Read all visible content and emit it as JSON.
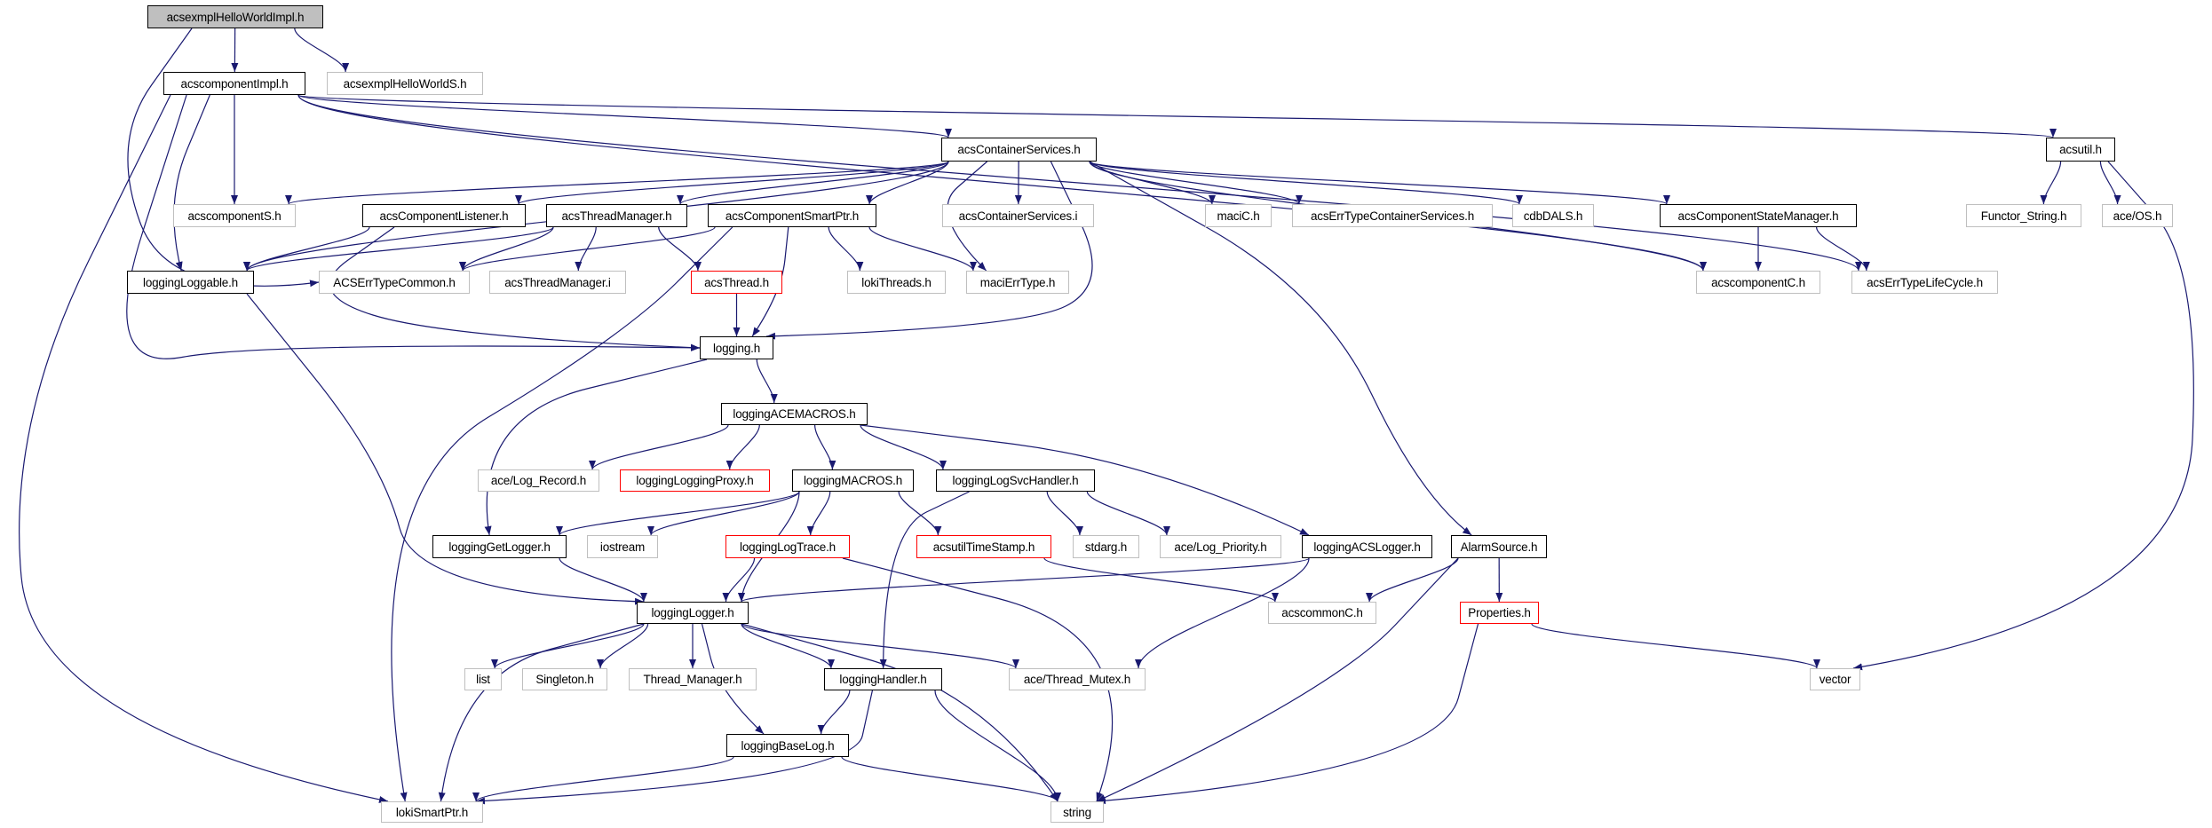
{
  "colors": {
    "edge": "#191970",
    "root_fill": "#bfbfbf",
    "documented_border": "#000000",
    "external_border": "#bfbfbf",
    "truncated_border": "#ff0000"
  },
  "nodes": [
    {
      "id": "root",
      "label": "acsexmplHelloWorldImpl.h",
      "style": "root"
    },
    {
      "id": "impl",
      "label": "acscomponentImpl.h",
      "style": "normal"
    },
    {
      "id": "helloS",
      "label": "acsexmplHelloWorldS.h",
      "style": "external"
    },
    {
      "id": "cs",
      "label": "acsContainerServices.h",
      "style": "normal"
    },
    {
      "id": "acsutil",
      "label": "acsutil.h",
      "style": "normal"
    },
    {
      "id": "compS",
      "label": "acscomponentS.h",
      "style": "external"
    },
    {
      "id": "listener",
      "label": "acsComponentListener.h",
      "style": "normal"
    },
    {
      "id": "threadMgr",
      "label": "acsThreadManager.h",
      "style": "normal"
    },
    {
      "id": "smartPtr",
      "label": "acsComponentSmartPtr.h",
      "style": "normal"
    },
    {
      "id": "csi",
      "label": "acsContainerServices.i",
      "style": "external"
    },
    {
      "id": "maciC",
      "label": "maciC.h",
      "style": "external"
    },
    {
      "id": "errCS",
      "label": "acsErrTypeContainerServices.h",
      "style": "external"
    },
    {
      "id": "cdb",
      "label": "cdbDALS.h",
      "style": "external"
    },
    {
      "id": "stateMgr",
      "label": "acsComponentStateManager.h",
      "style": "normal"
    },
    {
      "id": "functor",
      "label": "Functor_String.h",
      "style": "external"
    },
    {
      "id": "aceOS",
      "label": "ace/OS.h",
      "style": "external"
    },
    {
      "id": "loggable",
      "label": "loggingLoggable.h",
      "style": "normal"
    },
    {
      "id": "errCommon",
      "label": "ACSErrTypeCommon.h",
      "style": "external"
    },
    {
      "id": "tmi",
      "label": "acsThreadManager.i",
      "style": "external"
    },
    {
      "id": "thread",
      "label": "acsThread.h",
      "style": "truncated"
    },
    {
      "id": "lokiThreads",
      "label": "lokiThreads.h",
      "style": "external"
    },
    {
      "id": "maciErr",
      "label": "maciErrType.h",
      "style": "external"
    },
    {
      "id": "compC",
      "label": "acscomponentC.h",
      "style": "external"
    },
    {
      "id": "lifeCycle",
      "label": "acsErrTypeLifeCycle.h",
      "style": "external"
    },
    {
      "id": "logging",
      "label": "logging.h",
      "style": "normal"
    },
    {
      "id": "aceMacros",
      "label": "loggingACEMACROS.h",
      "style": "normal"
    },
    {
      "id": "logRecord",
      "label": "ace/Log_Record.h",
      "style": "external"
    },
    {
      "id": "proxy",
      "label": "loggingLoggingProxy.h",
      "style": "truncated"
    },
    {
      "id": "macros",
      "label": "loggingMACROS.h",
      "style": "normal"
    },
    {
      "id": "svc",
      "label": "loggingLogSvcHandler.h",
      "style": "normal"
    },
    {
      "id": "getLogger",
      "label": "loggingGetLogger.h",
      "style": "normal"
    },
    {
      "id": "iostream",
      "label": "iostream",
      "style": "external"
    },
    {
      "id": "logTrace",
      "label": "loggingLogTrace.h",
      "style": "truncated"
    },
    {
      "id": "timeStamp",
      "label": "acsutilTimeStamp.h",
      "style": "truncated"
    },
    {
      "id": "stdarg",
      "label": "stdarg.h",
      "style": "external"
    },
    {
      "id": "logPriority",
      "label": "ace/Log_Priority.h",
      "style": "external"
    },
    {
      "id": "acsLogger",
      "label": "loggingACSLogger.h",
      "style": "normal"
    },
    {
      "id": "alarm",
      "label": "AlarmSource.h",
      "style": "normal"
    },
    {
      "id": "logger",
      "label": "loggingLogger.h",
      "style": "normal"
    },
    {
      "id": "commonC",
      "label": "acscommonC.h",
      "style": "external"
    },
    {
      "id": "props",
      "label": "Properties.h",
      "style": "truncated"
    },
    {
      "id": "list",
      "label": "list",
      "style": "external"
    },
    {
      "id": "singleton",
      "label": "Singleton.h",
      "style": "external"
    },
    {
      "id": "threadManager",
      "label": "Thread_Manager.h",
      "style": "external"
    },
    {
      "id": "handler",
      "label": "loggingHandler.h",
      "style": "normal"
    },
    {
      "id": "mutex",
      "label": "ace/Thread_Mutex.h",
      "style": "external"
    },
    {
      "id": "vector",
      "label": "vector",
      "style": "external"
    },
    {
      "id": "baseLog",
      "label": "loggingBaseLog.h",
      "style": "normal"
    },
    {
      "id": "lokiSP",
      "label": "lokiSmartPtr.h",
      "style": "external"
    },
    {
      "id": "string",
      "label": "string",
      "style": "external"
    }
  ],
  "edges": [
    [
      "root",
      "impl"
    ],
    [
      "root",
      "helloS"
    ],
    [
      "root",
      "errCommon"
    ],
    [
      "impl",
      "compS"
    ],
    [
      "impl",
      "loggable"
    ],
    [
      "impl",
      "logging"
    ],
    [
      "impl",
      "lokiSP"
    ],
    [
      "impl",
      "cs"
    ],
    [
      "impl",
      "acsutil"
    ],
    [
      "impl",
      "compC"
    ],
    [
      "impl",
      "lifeCycle"
    ],
    [
      "cs",
      "compS"
    ],
    [
      "cs",
      "loggable"
    ],
    [
      "cs",
      "listener"
    ],
    [
      "cs",
      "threadMgr"
    ],
    [
      "cs",
      "smartPtr"
    ],
    [
      "cs",
      "csi"
    ],
    [
      "cs",
      "maciErr"
    ],
    [
      "cs",
      "logging"
    ],
    [
      "cs",
      "maciC"
    ],
    [
      "cs",
      "errCS"
    ],
    [
      "cs",
      "cdb"
    ],
    [
      "cs",
      "stateMgr"
    ],
    [
      "cs",
      "compC"
    ],
    [
      "cs",
      "alarm"
    ],
    [
      "listener",
      "loggable"
    ],
    [
      "listener",
      "logging"
    ],
    [
      "threadMgr",
      "loggable"
    ],
    [
      "threadMgr",
      "errCommon"
    ],
    [
      "threadMgr",
      "tmi"
    ],
    [
      "threadMgr",
      "thread"
    ],
    [
      "smartPtr",
      "errCommon"
    ],
    [
      "smartPtr",
      "lokiSP"
    ],
    [
      "smartPtr",
      "logging"
    ],
    [
      "smartPtr",
      "lokiThreads"
    ],
    [
      "smartPtr",
      "maciErr"
    ],
    [
      "thread",
      "logging"
    ],
    [
      "stateMgr",
      "compC"
    ],
    [
      "stateMgr",
      "lifeCycle"
    ],
    [
      "acsutil",
      "functor"
    ],
    [
      "acsutil",
      "aceOS"
    ],
    [
      "acsutil",
      "vector"
    ],
    [
      "loggable",
      "logger"
    ],
    [
      "logging",
      "aceMacros"
    ],
    [
      "logging",
      "getLogger"
    ],
    [
      "aceMacros",
      "logRecord"
    ],
    [
      "aceMacros",
      "proxy"
    ],
    [
      "aceMacros",
      "macros"
    ],
    [
      "aceMacros",
      "svc"
    ],
    [
      "aceMacros",
      "acsLogger"
    ],
    [
      "macros",
      "getLogger"
    ],
    [
      "macros",
      "iostream"
    ],
    [
      "macros",
      "logTrace"
    ],
    [
      "macros",
      "timeStamp"
    ],
    [
      "macros",
      "logger"
    ],
    [
      "svc",
      "handler"
    ],
    [
      "svc",
      "stdarg"
    ],
    [
      "svc",
      "logPriority"
    ],
    [
      "getLogger",
      "logger"
    ],
    [
      "logTrace",
      "logger"
    ],
    [
      "logTrace",
      "string"
    ],
    [
      "timeStamp",
      "commonC"
    ],
    [
      "acsLogger",
      "logger"
    ],
    [
      "acsLogger",
      "mutex"
    ],
    [
      "alarm",
      "commonC"
    ],
    [
      "alarm",
      "string"
    ],
    [
      "alarm",
      "props"
    ],
    [
      "props",
      "vector"
    ],
    [
      "props",
      "string"
    ],
    [
      "logger",
      "lokiSP"
    ],
    [
      "logger",
      "list"
    ],
    [
      "logger",
      "singleton"
    ],
    [
      "logger",
      "threadManager"
    ],
    [
      "logger",
      "handler"
    ],
    [
      "logger",
      "mutex"
    ],
    [
      "logger",
      "baseLog"
    ],
    [
      "logger",
      "string"
    ],
    [
      "handler",
      "baseLog"
    ],
    [
      "handler",
      "lokiSP"
    ],
    [
      "handler",
      "string"
    ],
    [
      "baseLog",
      "lokiSP"
    ],
    [
      "baseLog",
      "string"
    ]
  ]
}
